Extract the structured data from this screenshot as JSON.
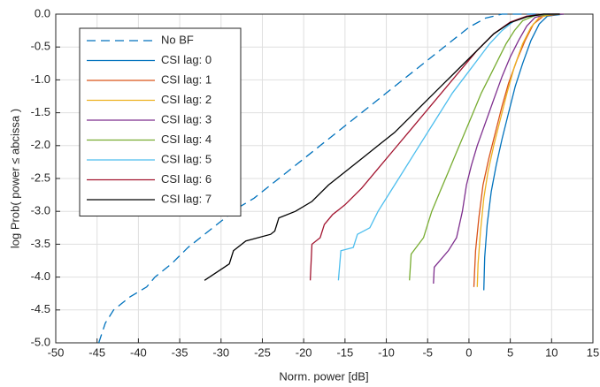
{
  "chart_data": {
    "type": "line",
    "xlabel": "Norm. power [dB]",
    "ylabel": "log Prob( power ≤ abcissa )",
    "xlim": [
      -50,
      15
    ],
    "xticks": [
      -50,
      -45,
      -40,
      -35,
      -30,
      -25,
      -20,
      -15,
      -10,
      -5,
      0,
      5,
      10,
      15
    ],
    "ylim": [
      -5,
      0
    ],
    "yticks": [
      {
        "value": 0,
        "label": "0.0"
      },
      -0.5,
      {
        "value": -1,
        "label": "-1.0"
      },
      -1.5,
      {
        "value": -2,
        "label": "-2.0"
      },
      -2.5,
      {
        "value": -3,
        "label": "-3.0"
      },
      -3.5,
      {
        "value": -4,
        "label": "-4.0"
      },
      -4.5,
      {
        "value": -5,
        "label": "-5.0"
      }
    ],
    "grid": true,
    "legend": "upper-left",
    "series": [
      {
        "name": "No BF",
        "color": "#0072bd",
        "linestyle": "dashed",
        "x": [
          -44.8,
          -44,
          -43,
          -41,
          -39,
          -38,
          -36,
          -34,
          -32,
          -30,
          -28,
          -26,
          -24,
          -22,
          -20,
          -18,
          -16,
          -14,
          -12,
          -10,
          -8,
          -6,
          -4,
          -2,
          0,
          2,
          4,
          8,
          11
        ],
        "values": [
          -5.0,
          -4.7,
          -4.5,
          -4.3,
          -4.15,
          -4.0,
          -3.8,
          -3.55,
          -3.35,
          -3.15,
          -2.95,
          -2.8,
          -2.6,
          -2.4,
          -2.2,
          -2.0,
          -1.8,
          -1.6,
          -1.4,
          -1.2,
          -1.0,
          -0.8,
          -0.6,
          -0.4,
          -0.2,
          -0.06,
          0,
          0,
          0
        ]
      },
      {
        "name": "CSI lag: 0",
        "color": "#0072bd",
        "linestyle": "solid",
        "x": [
          1.8,
          1.9,
          2.2,
          2.7,
          3.3,
          4,
          4.8,
          5.6,
          6.5,
          7.5,
          8.5,
          9.5,
          11.5
        ],
        "values": [
          -4.2,
          -3.7,
          -3.2,
          -2.7,
          -2.3,
          -1.9,
          -1.5,
          -1.1,
          -0.75,
          -0.4,
          -0.15,
          -0.03,
          0
        ]
      },
      {
        "name": "CSI lag: 1",
        "color": "#d95319",
        "linestyle": "solid",
        "x": [
          0.6,
          0.8,
          1.2,
          1.7,
          2.4,
          3.2,
          4,
          4.8,
          5.8,
          6.8,
          7.8,
          9,
          11
        ],
        "values": [
          -4.15,
          -3.6,
          -3.1,
          -2.6,
          -2.2,
          -1.8,
          -1.4,
          -1.05,
          -0.7,
          -0.4,
          -0.15,
          -0.03,
          0
        ]
      },
      {
        "name": "CSI lag: 2",
        "color": "#edb120",
        "linestyle": "solid",
        "x": [
          1.0,
          1.1,
          1.4,
          1.8,
          2.3,
          3,
          3.8,
          4.6,
          5.5,
          6.5,
          7.5,
          8.5,
          10,
          11.5
        ],
        "values": [
          -4.15,
          -3.8,
          -3.3,
          -2.8,
          -2.4,
          -2.0,
          -1.6,
          -1.2,
          -0.8,
          -0.45,
          -0.2,
          -0.05,
          0,
          0
        ]
      },
      {
        "name": "CSI lag: 3",
        "color": "#7e2f8e",
        "linestyle": "solid",
        "x": [
          -4.3,
          -4.2,
          -2.5,
          -1.5,
          -0.8,
          -0.3,
          0.3,
          1,
          2,
          3,
          4,
          5,
          6,
          7,
          8,
          9.5,
          11.5
        ],
        "values": [
          -4.1,
          -3.85,
          -3.6,
          -3.4,
          -3.0,
          -2.6,
          -2.3,
          -2.0,
          -1.65,
          -1.3,
          -0.95,
          -0.65,
          -0.4,
          -0.18,
          -0.05,
          0,
          0
        ]
      },
      {
        "name": "CSI lag: 4",
        "color": "#77ac30",
        "linestyle": "solid",
        "x": [
          -7.2,
          -7,
          -5.5,
          -5,
          -4.5,
          -3.5,
          -2.5,
          -1.5,
          -0.5,
          0.5,
          1.5,
          2.5,
          3.5,
          4.5,
          5.5,
          6.5,
          8,
          11
        ],
        "values": [
          -4.05,
          -3.65,
          -3.4,
          -3.2,
          -3.0,
          -2.7,
          -2.4,
          -2.1,
          -1.8,
          -1.5,
          -1.2,
          -0.95,
          -0.7,
          -0.45,
          -0.25,
          -0.1,
          -0.02,
          0
        ]
      },
      {
        "name": "CSI lag: 5",
        "color": "#4dbeee",
        "linestyle": "solid",
        "x": [
          -15.8,
          -15.5,
          -14,
          -13.5,
          -12,
          -11,
          -9.5,
          -8,
          -6.5,
          -5,
          -3.5,
          -2,
          -0.5,
          1,
          2.5,
          4,
          5.5,
          7,
          9,
          11
        ],
        "values": [
          -4.05,
          -3.6,
          -3.55,
          -3.35,
          -3.25,
          -3.0,
          -2.7,
          -2.4,
          -2.1,
          -1.8,
          -1.5,
          -1.2,
          -0.95,
          -0.7,
          -0.45,
          -0.25,
          -0.1,
          -0.03,
          0,
          0
        ]
      },
      {
        "name": "CSI lag: 6",
        "color": "#a2142f",
        "linestyle": "solid",
        "x": [
          -19.2,
          -19,
          -18,
          -17.5,
          -16.5,
          -15,
          -13,
          -11,
          -9,
          -7,
          -5,
          -3,
          -1,
          1,
          3,
          5,
          7,
          9,
          11
        ],
        "values": [
          -4.05,
          -3.5,
          -3.4,
          -3.2,
          -3.05,
          -2.9,
          -2.65,
          -2.35,
          -2.05,
          -1.75,
          -1.45,
          -1.15,
          -0.85,
          -0.55,
          -0.3,
          -0.12,
          -0.03,
          0,
          0
        ]
      },
      {
        "name": "CSI lag: 7",
        "color": "#000000",
        "linestyle": "solid",
        "x": [
          -32,
          -29,
          -28.5,
          -27,
          -24,
          -23.5,
          -23,
          -21,
          -19,
          -17,
          -15,
          -13,
          -11,
          -9,
          -7,
          -5,
          -3,
          -1,
          1,
          3,
          5,
          7,
          9,
          11
        ],
        "values": [
          -4.05,
          -3.8,
          -3.6,
          -3.45,
          -3.35,
          -3.3,
          -3.1,
          -3.0,
          -2.85,
          -2.6,
          -2.4,
          -2.2,
          -2.0,
          -1.8,
          -1.55,
          -1.3,
          -1.05,
          -0.8,
          -0.55,
          -0.3,
          -0.13,
          -0.04,
          0,
          0
        ]
      }
    ]
  }
}
